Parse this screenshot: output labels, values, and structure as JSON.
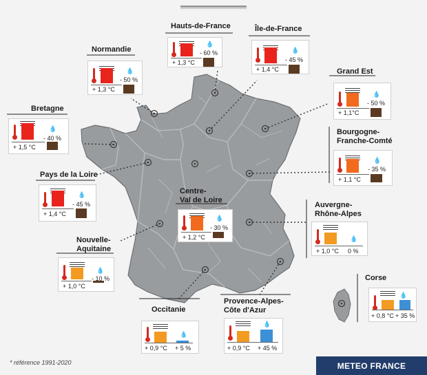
{
  "footnote": "* référence 1991-2020",
  "brand": "METEO FRANCE",
  "colors": {
    "strong_warm": "#e8241c",
    "warm": "#f26a1d",
    "mild": "#f39a22",
    "rain_deficit": "#5b3a23",
    "rain_surplus": "#3d8fd6",
    "thermometer": "#d42a1f",
    "map_fill": "#999c9f",
    "map_border": "#6d7073"
  },
  "regions": [
    {
      "id": "hauts-de-france",
      "name": "Hauts-de-France",
      "temp": "+ 1,3 °C",
      "rain": "- 60 %"
    },
    {
      "id": "ile-de-france",
      "name": "Île-de-France",
      "temp": "+ 1,4 °C",
      "rain": "- 45 %"
    },
    {
      "id": "normandie",
      "name": "Normandie",
      "temp": "+ 1,3 °C",
      "rain": "- 50 %"
    },
    {
      "id": "grand-est",
      "name": "Grand Est",
      "temp": "+ 1,1°C",
      "rain": "- 50 %"
    },
    {
      "id": "bretagne",
      "name": "Bretagne",
      "temp": "+ 1,5 °C",
      "rain": "- 40 %"
    },
    {
      "id": "bourgogne-franche-comte",
      "name": "Bourgogne-\nFranche-Comté",
      "temp": "+ 1,1 °C",
      "rain": "- 35 %"
    },
    {
      "id": "pays-de-la-loire",
      "name": "Pays de la Loire",
      "temp": "+ 1,4 °C",
      "rain": "- 45 %"
    },
    {
      "id": "centre-val-de-loire",
      "name": "Centre-\nVal de Loire",
      "temp": "+ 1,2 °C",
      "rain": "- 30 %"
    },
    {
      "id": "auvergne-rhone-alpes",
      "name": "Auvergne-\nRhône-Alpes",
      "temp": "+ 1,0 °C",
      "rain": "0 %"
    },
    {
      "id": "nouvelle-aquitaine",
      "name": "Nouvelle-\nAquitaine",
      "temp": "+ 1,0 °C",
      "rain": "- 10 %"
    },
    {
      "id": "corse",
      "name": "Corse",
      "temp": "+ 0,8 °C",
      "rain": "+ 35 %"
    },
    {
      "id": "occitanie",
      "name": "Occitanie",
      "temp": "+ 0,9 °C",
      "rain": "+ 5 %"
    },
    {
      "id": "provence-alpes-cote-dazur",
      "name": "Provence-Alpes-\nCôte d'Azur",
      "temp": "+ 0,9 °C",
      "rain": "+ 45 %"
    }
  ]
}
